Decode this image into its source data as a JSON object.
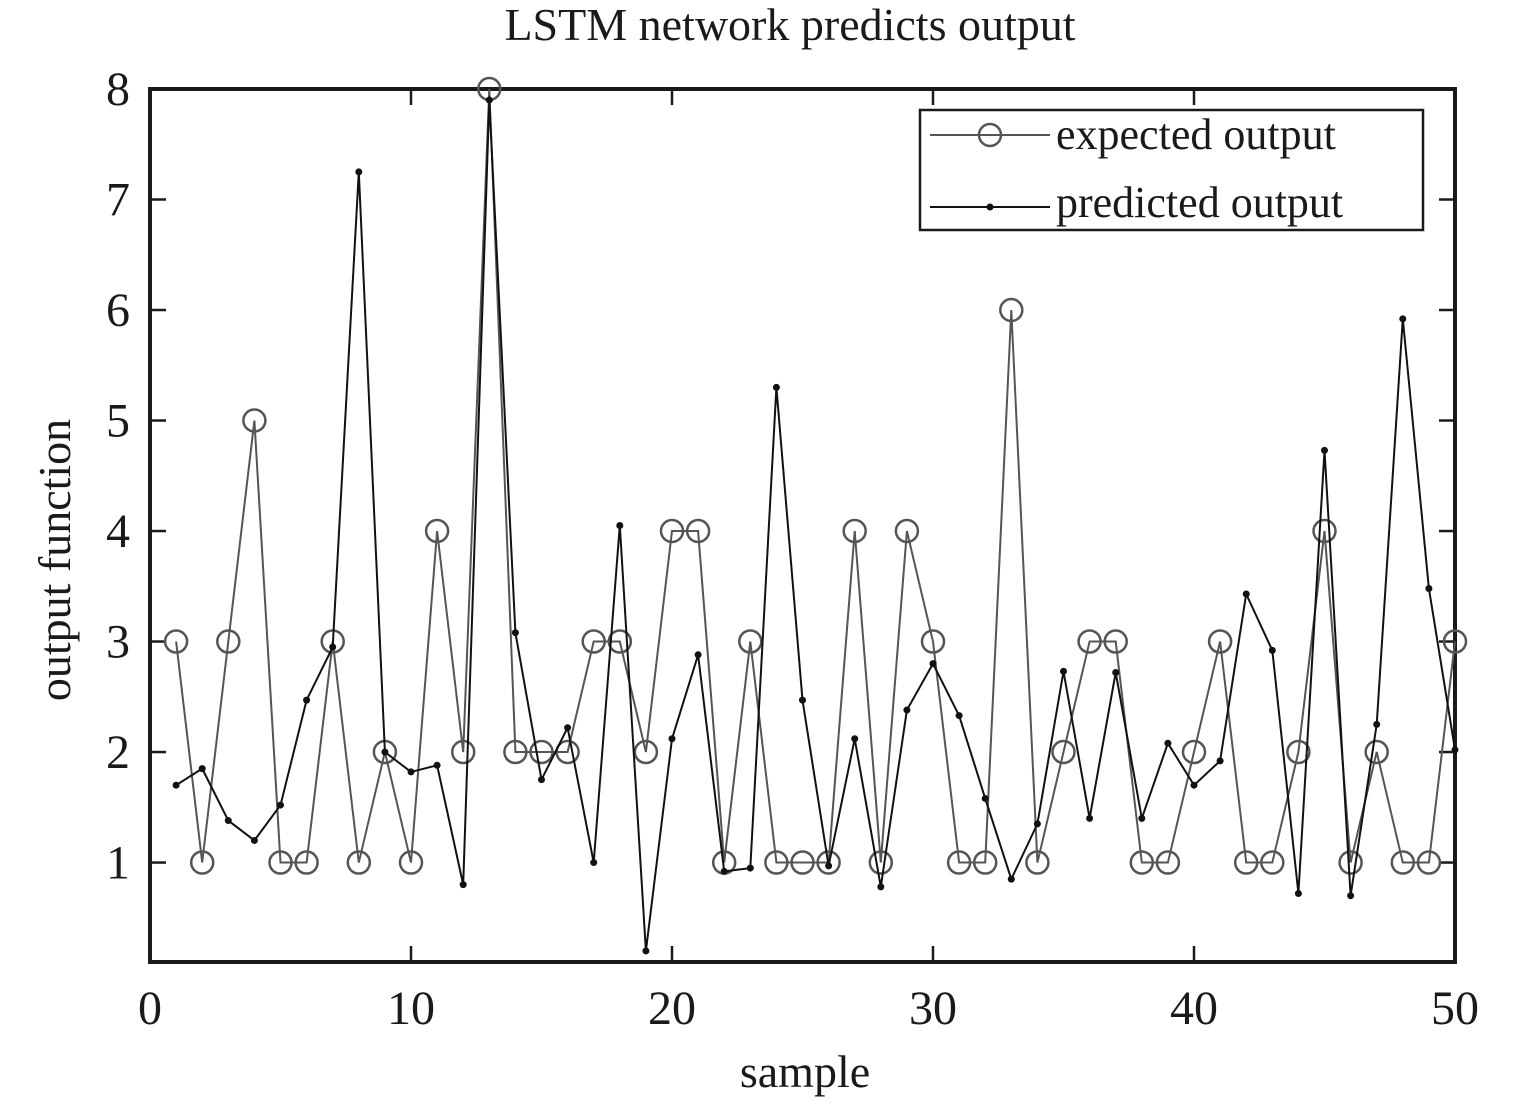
{
  "chart_data": {
    "type": "line",
    "title": "LSTM network predicts output",
    "xlabel": "sample",
    "ylabel": "output function",
    "xlim": [
      0,
      50
    ],
    "ylim": [
      0.1,
      8
    ],
    "x_ticks": [
      0,
      10,
      20,
      30,
      40,
      50
    ],
    "y_ticks": [
      1,
      2,
      3,
      4,
      5,
      6,
      7,
      8
    ],
    "grid": false,
    "legend_position": "top-right",
    "x": [
      1,
      2,
      3,
      4,
      5,
      6,
      7,
      8,
      9,
      10,
      11,
      12,
      13,
      14,
      15,
      16,
      17,
      18,
      19,
      20,
      21,
      22,
      23,
      24,
      25,
      26,
      27,
      28,
      29,
      30,
      31,
      32,
      33,
      34,
      35,
      36,
      37,
      38,
      39,
      40,
      41,
      42,
      43,
      44,
      45,
      46,
      47,
      48,
      49,
      50
    ],
    "series": [
      {
        "name": "expected output",
        "marker": "circle",
        "color": "#555555",
        "values": [
          3,
          1,
          3,
          5,
          1,
          1,
          3,
          1,
          2,
          1,
          4,
          2,
          8,
          2,
          2,
          2,
          3,
          3,
          2,
          4,
          4,
          1,
          3,
          1,
          1,
          1,
          4,
          1,
          4,
          3,
          1,
          1,
          6,
          1,
          2,
          3,
          3,
          1,
          1,
          2,
          3,
          1,
          1,
          2,
          4,
          1,
          2,
          1,
          1,
          3
        ]
      },
      {
        "name": "predicted output",
        "marker": "dot",
        "color": "#111111",
        "values": [
          1.7,
          1.85,
          1.38,
          1.2,
          1.52,
          2.47,
          2.95,
          7.25,
          2.0,
          1.82,
          1.88,
          0.8,
          7.9,
          3.08,
          1.75,
          2.22,
          1.0,
          4.05,
          0.2,
          2.12,
          2.88,
          0.92,
          0.95,
          5.3,
          2.47,
          0.97,
          2.12,
          0.78,
          2.38,
          2.8,
          2.33,
          1.58,
          0.85,
          1.35,
          2.73,
          1.4,
          2.72,
          1.4,
          2.08,
          1.7,
          1.92,
          3.43,
          2.92,
          0.72,
          4.73,
          0.7,
          2.25,
          5.92,
          3.48,
          2.02
        ]
      }
    ]
  }
}
